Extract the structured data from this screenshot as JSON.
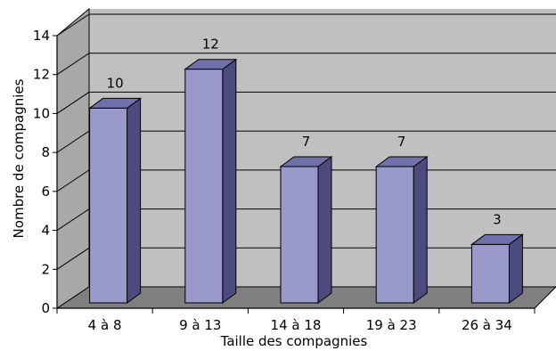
{
  "chart_data": {
    "type": "bar",
    "title": "",
    "xlabel": "Taille des compagnies",
    "ylabel": "Nombre de compagnies",
    "categories": [
      "4 à 8",
      "9 à 13",
      "14 à 18",
      "19 à 23",
      "26 à 34"
    ],
    "values": [
      10,
      12,
      7,
      7,
      3
    ],
    "ylim": [
      0,
      14
    ],
    "yticks": [
      0,
      2,
      4,
      6,
      8,
      10,
      12,
      14
    ],
    "grid": true,
    "legend": "none",
    "style": "3d",
    "colors": {
      "bar_front": "#9999cc",
      "bar_side": "#4b4b7d",
      "bar_top": "#7070aa",
      "wall": "#c0c0c0",
      "floor": "#808080",
      "gridline": "#000000"
    }
  }
}
